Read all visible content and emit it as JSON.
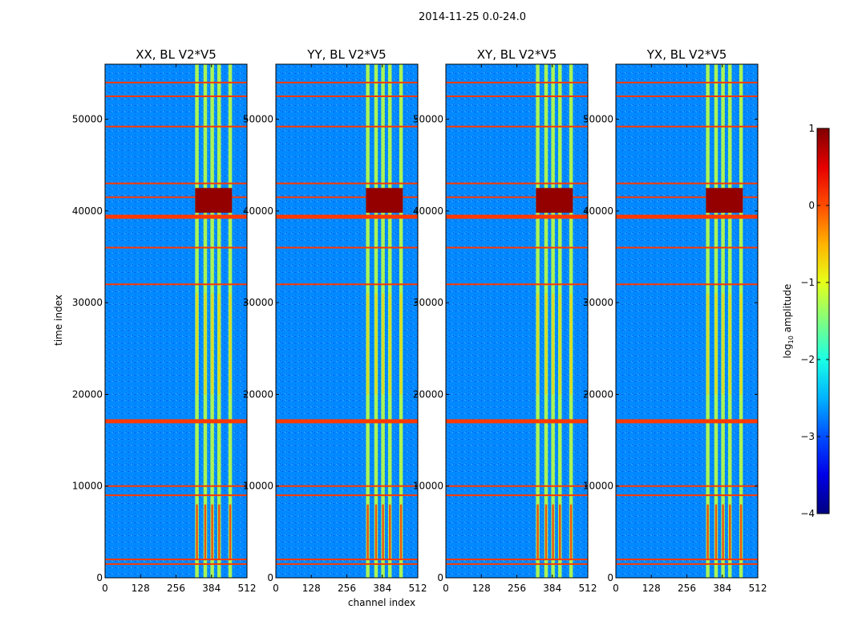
{
  "figure": {
    "suptitle": "2014-11-25 0.0-24.0",
    "xlabel": "channel index",
    "ylabel": "time index",
    "colorbar_label": "log10 amplitude",
    "colorbar_label_base": "log",
    "colorbar_label_sub": "10",
    "colorbar_label_rest": " amplitude"
  },
  "panels": [
    {
      "title": "XX, BL V2*V5"
    },
    {
      "title": "YY, BL V2*V5"
    },
    {
      "title": "XY, BL V2*V5"
    },
    {
      "title": "YX, BL V2*V5"
    }
  ],
  "chart_data": {
    "type": "heatmap",
    "title": "2014-11-25 0.0-24.0",
    "xlabel": "channel index",
    "ylabel": "time index",
    "xlim": [
      0,
      512
    ],
    "ylim": [
      0,
      56000
    ],
    "xticks": [
      0,
      128,
      256,
      384,
      512
    ],
    "yticks": [
      0,
      10000,
      20000,
      30000,
      40000,
      50000
    ],
    "colorbar": {
      "label": "log10 amplitude",
      "range": [
        -4,
        1
      ],
      "ticks": [
        1,
        0,
        -1,
        -2,
        -3,
        -4
      ],
      "colormap": "jet"
    },
    "panels": [
      "XX, BL V2*V5",
      "YY, BL V2*V5",
      "XY, BL V2*V5",
      "YX, BL V2*V5"
    ],
    "background_level": -2.7,
    "column_bands_channels": [
      [
        325,
        338
      ],
      [
        355,
        368
      ],
      [
        380,
        393
      ],
      [
        405,
        418
      ],
      [
        445,
        458
      ]
    ],
    "column_band_level": -1.2,
    "flagged_rows_time": [
      1500,
      2000,
      9000,
      10000,
      17200,
      32000,
      36000,
      39500,
      41500,
      43000,
      49200,
      52500,
      54000
    ],
    "flagged_level": 0.1,
    "high_block_time": [
      39800,
      42500
    ],
    "high_block_level": 0.9
  }
}
